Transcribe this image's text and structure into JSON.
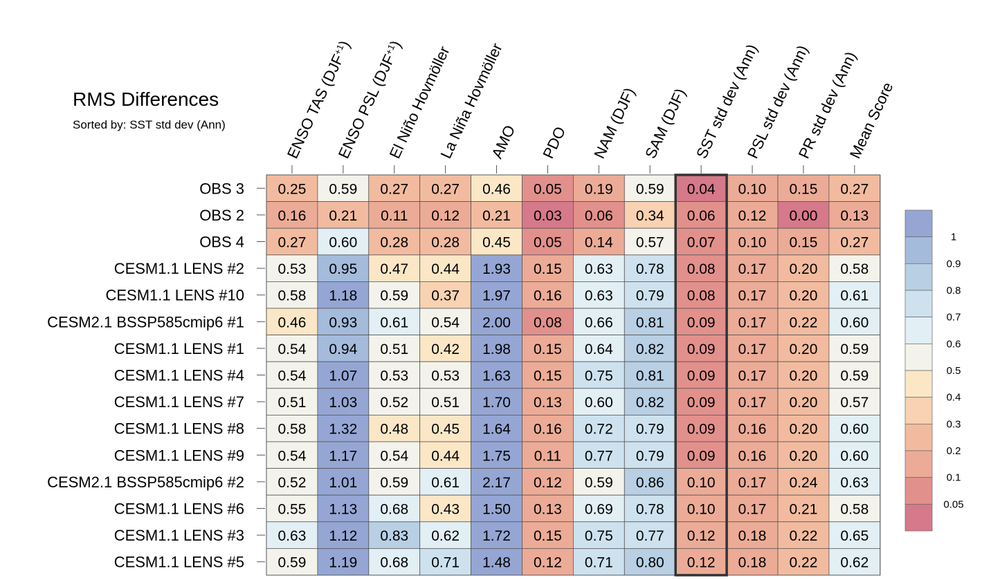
{
  "chart_data": {
    "type": "heatmap",
    "title": "RMS Differences",
    "subtitle": "Sorted by: SST std dev (Ann)",
    "columns": [
      {
        "main": "ENSO TAS (DJF",
        "sup": "+1",
        "close": ")"
      },
      {
        "main": "ENSO PSL (DJF",
        "sup": "+1",
        "close": ")"
      },
      {
        "main": "El Niño Hovmöller"
      },
      {
        "main": "La Niña Hovmöller"
      },
      {
        "main": "AMO"
      },
      {
        "main": "PDO"
      },
      {
        "main": "NAM (DJF)"
      },
      {
        "main": "SAM (DJF)"
      },
      {
        "main": "SST std dev (Ann)"
      },
      {
        "main": "PSL std dev (Ann)"
      },
      {
        "main": "PR std dev (Ann)"
      },
      {
        "main": "Mean Score"
      }
    ],
    "sorted_column_index": 8,
    "rows": [
      {
        "label": "OBS 3",
        "values": [
          "0.25",
          "0.59",
          "0.27",
          "0.27",
          "0.46",
          "0.05",
          "0.19",
          "0.59",
          "0.04",
          "0.10",
          "0.15",
          "0.27"
        ]
      },
      {
        "label": "OBS 2",
        "values": [
          "0.16",
          "0.21",
          "0.11",
          "0.12",
          "0.21",
          "0.03",
          "0.06",
          "0.34",
          "0.06",
          "0.12",
          "0.00",
          "0.13"
        ]
      },
      {
        "label": "OBS 4",
        "values": [
          "0.27",
          "0.60",
          "0.28",
          "0.28",
          "0.45",
          "0.05",
          "0.14",
          "0.57",
          "0.07",
          "0.10",
          "0.15",
          "0.27"
        ]
      },
      {
        "label": "CESM1.1 LENS #2",
        "values": [
          "0.53",
          "0.95",
          "0.47",
          "0.44",
          "1.93",
          "0.15",
          "0.63",
          "0.78",
          "0.08",
          "0.17",
          "0.20",
          "0.58"
        ]
      },
      {
        "label": "CESM1.1 LENS #10",
        "values": [
          "0.58",
          "1.18",
          "0.59",
          "0.37",
          "1.97",
          "0.16",
          "0.63",
          "0.79",
          "0.08",
          "0.17",
          "0.20",
          "0.61"
        ]
      },
      {
        "label": "CESM2.1 BSSP585cmip6 #1",
        "values": [
          "0.46",
          "0.93",
          "0.61",
          "0.54",
          "2.00",
          "0.08",
          "0.66",
          "0.81",
          "0.09",
          "0.17",
          "0.22",
          "0.60"
        ]
      },
      {
        "label": "CESM1.1 LENS #1",
        "values": [
          "0.54",
          "0.94",
          "0.51",
          "0.42",
          "1.98",
          "0.15",
          "0.64",
          "0.82",
          "0.09",
          "0.17",
          "0.20",
          "0.59"
        ]
      },
      {
        "label": "CESM1.1 LENS #4",
        "values": [
          "0.54",
          "1.07",
          "0.53",
          "0.53",
          "1.63",
          "0.15",
          "0.75",
          "0.81",
          "0.09",
          "0.17",
          "0.20",
          "0.59"
        ]
      },
      {
        "label": "CESM1.1 LENS #7",
        "values": [
          "0.51",
          "1.03",
          "0.52",
          "0.51",
          "1.70",
          "0.13",
          "0.60",
          "0.82",
          "0.09",
          "0.17",
          "0.20",
          "0.57"
        ]
      },
      {
        "label": "CESM1.1 LENS #8",
        "values": [
          "0.58",
          "1.32",
          "0.48",
          "0.45",
          "1.64",
          "0.16",
          "0.72",
          "0.79",
          "0.09",
          "0.16",
          "0.20",
          "0.60"
        ]
      },
      {
        "label": "CESM1.1 LENS #9",
        "values": [
          "0.54",
          "1.17",
          "0.54",
          "0.44",
          "1.75",
          "0.11",
          "0.77",
          "0.79",
          "0.09",
          "0.16",
          "0.20",
          "0.60"
        ]
      },
      {
        "label": "CESM2.1 BSSP585cmip6 #2",
        "values": [
          "0.52",
          "1.01",
          "0.59",
          "0.61",
          "2.17",
          "0.12",
          "0.59",
          "0.86",
          "0.10",
          "0.17",
          "0.24",
          "0.63"
        ]
      },
      {
        "label": "CESM1.1 LENS #6",
        "values": [
          "0.55",
          "1.13",
          "0.68",
          "0.43",
          "1.50",
          "0.13",
          "0.69",
          "0.78",
          "0.10",
          "0.17",
          "0.21",
          "0.58"
        ]
      },
      {
        "label": "CESM1.1 LENS #3",
        "values": [
          "0.63",
          "1.12",
          "0.83",
          "0.62",
          "1.72",
          "0.15",
          "0.75",
          "0.77",
          "0.12",
          "0.18",
          "0.22",
          "0.65"
        ]
      },
      {
        "label": "CESM1.1 LENS #5",
        "values": [
          "0.59",
          "1.19",
          "0.68",
          "0.71",
          "1.48",
          "0.12",
          "0.71",
          "0.80",
          "0.12",
          "0.18",
          "0.22",
          "0.62"
        ]
      }
    ],
    "colorbar": {
      "thresholds": [
        0.05,
        0.1,
        0.2,
        0.3,
        0.4,
        0.5,
        0.6,
        0.7,
        0.8,
        0.9,
        1
      ],
      "tick_labels": [
        "0.05",
        "0.1",
        "0.2",
        "0.3",
        "0.4",
        "0.5",
        "0.6",
        "0.7",
        "0.8",
        "0.9",
        "1"
      ],
      "colors": [
        "#d6798a",
        "#e2908c",
        "#ecab96",
        "#f2bb9f",
        "#f8d2b2",
        "#fbe7c6",
        "#f3f3eb",
        "#e2eff5",
        "#cde2ee",
        "#b8cfe4",
        "#a5bbdc",
        "#95a6d4"
      ]
    }
  }
}
